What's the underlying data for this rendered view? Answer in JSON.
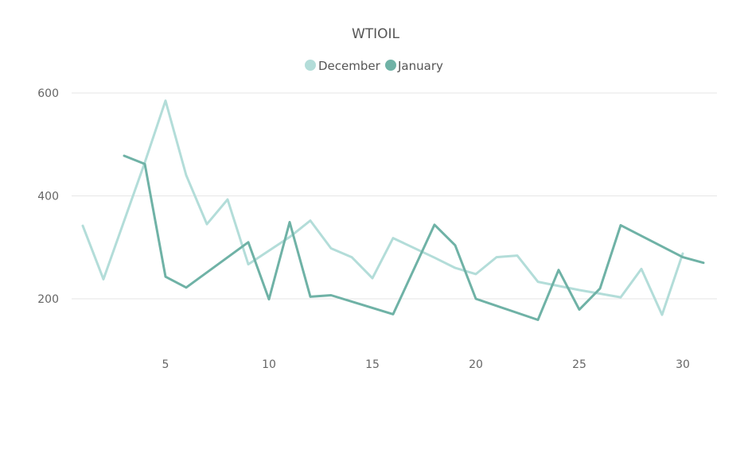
{
  "chart_data": {
    "type": "line",
    "title": "WTIOIL",
    "xlabel": "",
    "ylabel": "",
    "xlim": [
      1,
      31
    ],
    "ylim": [
      90,
      650
    ],
    "x_ticks": [
      5,
      10,
      15,
      20,
      25,
      30
    ],
    "y_ticks": [
      200,
      400,
      600
    ],
    "grid": true,
    "legend_position": "top-center",
    "series": [
      {
        "name": "December",
        "color": "#b3ddd9",
        "points": [
          {
            "x": 1,
            "y": 342
          },
          {
            "x": 2,
            "y": 238
          },
          {
            "x": 4,
            "y": 465
          },
          {
            "x": 5,
            "y": 585
          },
          {
            "x": 6,
            "y": 440
          },
          {
            "x": 7,
            "y": 345
          },
          {
            "x": 8,
            "y": 393
          },
          {
            "x": 9,
            "y": 267
          },
          {
            "x": 11,
            "y": 320
          },
          {
            "x": 12,
            "y": 352
          },
          {
            "x": 13,
            "y": 298
          },
          {
            "x": 14,
            "y": 281
          },
          {
            "x": 15,
            "y": 240
          },
          {
            "x": 16,
            "y": 318
          },
          {
            "x": 18,
            "y": 280
          },
          {
            "x": 19,
            "y": 260
          },
          {
            "x": 20,
            "y": 248
          },
          {
            "x": 21,
            "y": 281
          },
          {
            "x": 22,
            "y": 284
          },
          {
            "x": 23,
            "y": 233
          },
          {
            "x": 25,
            "y": 217
          },
          {
            "x": 26,
            "y": 210
          },
          {
            "x": 27,
            "y": 203
          },
          {
            "x": 28,
            "y": 258
          },
          {
            "x": 29,
            "y": 169
          },
          {
            "x": 30,
            "y": 288
          }
        ]
      },
      {
        "name": "January",
        "color": "#6fb2a6",
        "points": [
          {
            "x": 3,
            "y": 478
          },
          {
            "x": 4,
            "y": 462
          },
          {
            "x": 5,
            "y": 243
          },
          {
            "x": 6,
            "y": 222
          },
          {
            "x": 9,
            "y": 310
          },
          {
            "x": 10,
            "y": 199
          },
          {
            "x": 11,
            "y": 349
          },
          {
            "x": 12,
            "y": 204
          },
          {
            "x": 13,
            "y": 207
          },
          {
            "x": 16,
            "y": 170
          },
          {
            "x": 18,
            "y": 344
          },
          {
            "x": 19,
            "y": 304
          },
          {
            "x": 20,
            "y": 200
          },
          {
            "x": 23,
            "y": 159
          },
          {
            "x": 24,
            "y": 256
          },
          {
            "x": 25,
            "y": 179
          },
          {
            "x": 26,
            "y": 220
          },
          {
            "x": 27,
            "y": 343
          },
          {
            "x": 30,
            "y": 281
          },
          {
            "x": 31,
            "y": 270
          }
        ]
      }
    ]
  }
}
